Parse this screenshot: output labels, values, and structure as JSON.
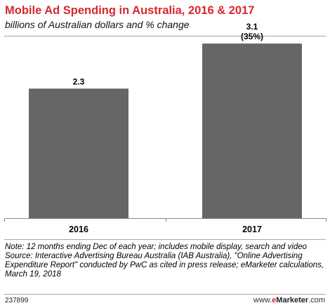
{
  "header": {
    "title": "Mobile Ad Spending in Australia, 2016 & 2017",
    "subtitle": "billions of Australian dollars and % change"
  },
  "chart_data": {
    "type": "bar",
    "categories": [
      "2016",
      "2017"
    ],
    "values": [
      2.3,
      3.1
    ],
    "value_labels": [
      "2.3",
      "3.1"
    ],
    "change_labels": [
      "",
      "(35%)"
    ],
    "ylim": [
      0,
      3.25
    ],
    "bar_color": "#666666",
    "grid": false
  },
  "notes": {
    "note": "Note: 12 months ending Dec of each year; includes mobile display, search and video",
    "source": "Source: Interactive Advertising Bureau Australia (IAB Australia), \"Online Advertising Expenditure Report\" conducted by PwC as cited in press release; eMarketer calculations, March 19, 2018"
  },
  "footer": {
    "chart_id": "237899",
    "brand_prefix": "www.",
    "brand_accent": "e",
    "brand_name": "Marketer",
    "brand_suffix": ".com"
  },
  "colors": {
    "title": "#d7282f",
    "bar": "#666666"
  }
}
